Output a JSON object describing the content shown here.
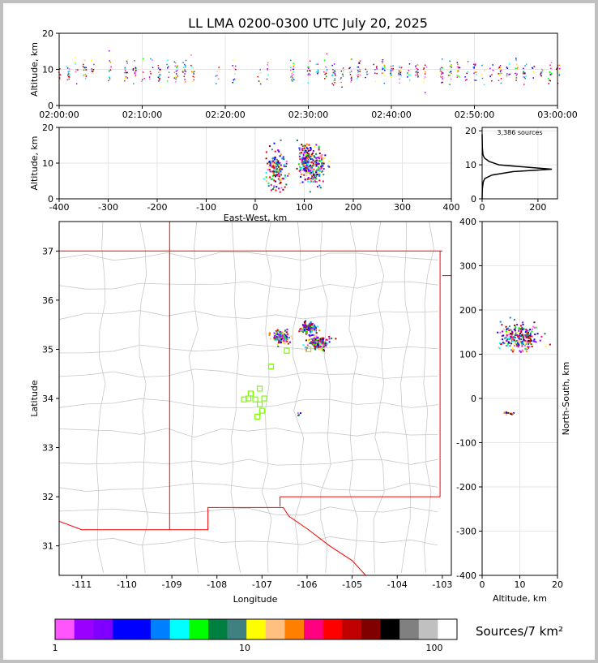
{
  "title": "LL LMA 0200-0300 UTC July 20, 2025",
  "colors": {
    "frame": "#c0c0c0",
    "state_border": "#ff0000",
    "county_border": "#c8c8c8",
    "station": "#7cfc00",
    "grid": "#e6e6e6"
  },
  "chart_data": [
    {
      "type": "scatter",
      "id": "time-height",
      "ylabel": "Altitude, km",
      "xlim": [
        "02:00:00",
        "03:00:00"
      ],
      "ylim": [
        0,
        20
      ],
      "xticks": [
        "02:00:00",
        "02:10:00",
        "02:20:00",
        "02:30:00",
        "02:40:00",
        "02:50:00",
        "03:00:00"
      ],
      "yticks": [
        0,
        10,
        20
      ],
      "description_points_minutes": [
        0,
        1,
        2,
        3,
        4,
        6,
        8,
        9,
        10,
        11,
        12,
        13,
        14,
        15,
        16,
        19,
        21,
        24,
        25,
        28,
        30,
        31,
        32,
        33,
        34,
        35,
        36,
        37,
        38,
        39,
        40,
        41,
        42,
        43,
        44,
        46,
        47,
        48,
        49,
        50,
        51,
        52,
        53,
        54,
        55,
        56,
        57,
        58,
        59,
        60
      ],
      "alt_center_km": 9.5,
      "alt_spread_km": 2.5
    },
    {
      "type": "scatter",
      "id": "east-west-height",
      "xlabel": "East-West, km",
      "ylabel": "Altitude, km",
      "xlim": [
        -400,
        400
      ],
      "ylim": [
        0,
        20
      ],
      "xticks": [
        -400,
        -300,
        -200,
        -100,
        0,
        100,
        200,
        300,
        400
      ],
      "yticks": [
        0,
        10,
        20
      ],
      "clusters": [
        {
          "x": 42,
          "y": 8.5,
          "sx": 10,
          "sy": 2.5
        },
        {
          "x": 100,
          "y": 10.5,
          "sx": 8,
          "sy": 2.5
        },
        {
          "x": 122,
          "y": 9.5,
          "sx": 10,
          "sy": 2.5
        }
      ]
    },
    {
      "type": "line",
      "id": "altitude-histogram",
      "annotation": "3,386 sources",
      "xlim": [
        0,
        270
      ],
      "ylim": [
        0,
        21
      ],
      "xticks": [
        0,
        200
      ],
      "yticks": [
        0,
        10,
        20
      ],
      "profile": [
        {
          "alt": 0,
          "count": 0
        },
        {
          "alt": 3,
          "count": 1
        },
        {
          "alt": 5,
          "count": 4
        },
        {
          "alt": 6,
          "count": 10
        },
        {
          "alt": 7,
          "count": 35
        },
        {
          "alt": 8,
          "count": 110
        },
        {
          "alt": 8.7,
          "count": 250
        },
        {
          "alt": 9.3,
          "count": 160
        },
        {
          "alt": 10,
          "count": 60
        },
        {
          "alt": 11,
          "count": 25
        },
        {
          "alt": 12,
          "count": 8
        },
        {
          "alt": 13,
          "count": 3
        },
        {
          "alt": 15,
          "count": 1
        },
        {
          "alt": 19,
          "count": 0
        }
      ]
    },
    {
      "type": "scatter",
      "id": "plan-view",
      "xlabel": "Longitude",
      "ylabel": "Latitude",
      "xlim": [
        -111.5,
        -102.8
      ],
      "ylim": [
        30.4,
        37.6
      ],
      "xticks": [
        -111,
        -110,
        -109,
        -108,
        -107,
        -106,
        -105,
        -104,
        -103
      ],
      "yticks": [
        31,
        32,
        33,
        34,
        35,
        36,
        37
      ],
      "stations": [
        {
          "lon": -106.8,
          "lat": 34.65
        },
        {
          "lon": -106.45,
          "lat": 34.97
        },
        {
          "lon": -105.97,
          "lat": 35.0
        },
        {
          "lon": -107.05,
          "lat": 34.2
        },
        {
          "lon": -107.25,
          "lat": 34.1
        },
        {
          "lon": -107.3,
          "lat": 34.0
        },
        {
          "lon": -107.15,
          "lat": 33.98
        },
        {
          "lon": -106.95,
          "lat": 34.0
        },
        {
          "lon": -107.05,
          "lat": 33.88
        },
        {
          "lon": -107.0,
          "lat": 33.75
        },
        {
          "lon": -107.1,
          "lat": 33.63
        },
        {
          "lon": -107.4,
          "lat": 33.98
        }
      ],
      "clusters": [
        {
          "lon": -106.6,
          "lat": 35.26,
          "sx": 0.12,
          "sy": 0.07
        },
        {
          "lon": -105.98,
          "lat": 35.45,
          "sx": 0.08,
          "sy": 0.05
        },
        {
          "lon": -105.78,
          "lat": 35.15,
          "sx": 0.12,
          "sy": 0.07
        },
        {
          "lon": -106.2,
          "lat": 33.7,
          "sx": 0.02,
          "sy": 0.02
        }
      ]
    },
    {
      "type": "scatter",
      "id": "north-south-height",
      "xlabel": "Altitude, km",
      "ylabel": "North-South, km",
      "xlim": [
        0,
        20
      ],
      "ylim": [
        -400,
        400
      ],
      "xticks": [
        0,
        10,
        20
      ],
      "yticks": [
        -400,
        -300,
        -200,
        -100,
        0,
        100,
        200,
        300,
        400
      ],
      "clusters": [
        {
          "alt": 9.5,
          "ns": 140,
          "salt": 2.5,
          "sns": 15
        },
        {
          "alt": 7,
          "ns": -32,
          "salt": 1,
          "sns": 1.5
        }
      ]
    }
  ],
  "colorbar": {
    "label": "Sources/7 km²",
    "ticks": [
      "1",
      "10",
      "100"
    ],
    "colors": [
      "#ff55ff",
      "#9900ff",
      "#8000ff",
      "#0000ff",
      "#0000ff",
      "#0080ff",
      "#00ffff",
      "#00ff00",
      "#008040",
      "#408080",
      "#ffff00",
      "#ffc080",
      "#ff8000",
      "#ff0080",
      "#ff0000",
      "#c00000",
      "#800000",
      "#000000",
      "#808080",
      "#c0c0c0",
      "#ffffff"
    ]
  }
}
